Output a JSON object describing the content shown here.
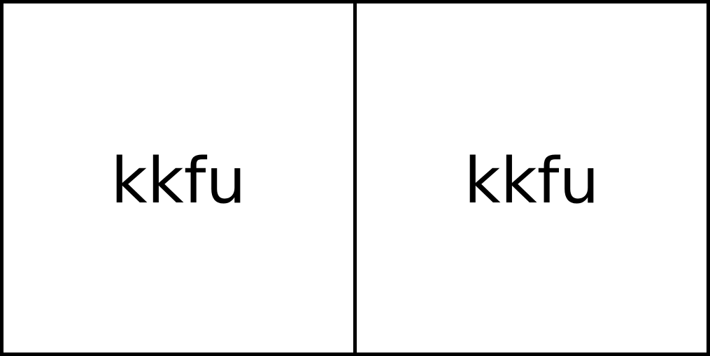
{
  "panels": [
    {
      "text": "kkfu"
    },
    {
      "text": "kkfu"
    }
  ],
  "colors": {
    "background": "#ffffff",
    "border": "#000000",
    "text": "#000000"
  }
}
